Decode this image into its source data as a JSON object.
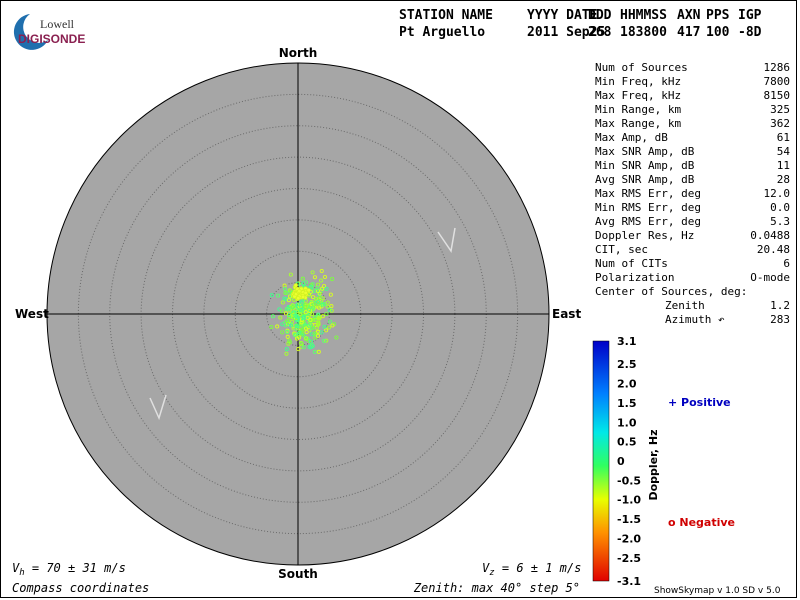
{
  "logo": {
    "name": "Lowell",
    "product": "DIGISONDE"
  },
  "header": {
    "columns": [
      "STATION NAME",
      "YYYY DATE",
      "DDD",
      "HHMMSS",
      "AXN",
      "PPS",
      "IGP"
    ],
    "values": [
      "Pt Arguello",
      "2011 Sep25",
      "268",
      "183800",
      "417",
      "100",
      "-8D"
    ]
  },
  "compass": {
    "north": "North",
    "south": "South",
    "east": "East",
    "west": "West"
  },
  "stats": [
    [
      "Num of Sources",
      "1286"
    ],
    [
      "Min Freq, kHz",
      "7800"
    ],
    [
      "Max Freq, kHz",
      "8150"
    ],
    [
      "Min Range, km",
      "325"
    ],
    [
      "Max Range, km",
      "362"
    ],
    [
      "Max Amp, dB",
      "61"
    ],
    [
      "Max SNR Amp, dB",
      "54"
    ],
    [
      "Min SNR Amp, dB",
      "11"
    ],
    [
      "Avg SNR Amp, dB",
      "28"
    ],
    [
      "Max RMS Err, deg",
      "12.0"
    ],
    [
      "Min RMS Err, deg",
      "0.0"
    ],
    [
      "Avg RMS Err, deg",
      "5.3"
    ],
    [
      "Doppler Res, Hz",
      "0.0488"
    ],
    [
      "CIT, sec",
      "20.48"
    ],
    [
      "Num of CITs",
      "6"
    ],
    [
      "Polarization",
      "O-mode"
    ]
  ],
  "center": {
    "title": "Center of Sources, deg:",
    "rows": [
      [
        "Zenith",
        "1.2"
      ],
      [
        "Azimuth ↶",
        "283"
      ]
    ]
  },
  "colorbar": {
    "ticks": [
      "3.1",
      "2.5",
      "2.0",
      "1.5",
      "1.0",
      "0.5",
      "0",
      "-0.5",
      "-1.0",
      "-1.5",
      "-2.0",
      "-2.5",
      "-3.1"
    ],
    "label": "Doppler, Hz",
    "positive": "+ Positive",
    "negative": "o Negative"
  },
  "footer": {
    "vh": {
      "symbol": "V",
      "sub": "h",
      "rest": " = 70 ± 31 m/s"
    },
    "vz": {
      "symbol": "V",
      "sub": "z",
      "rest": " = 6 ± 1 m/s"
    },
    "coords": "Compass coordinates",
    "zenith": "Zenith: max 40°  step 5°",
    "version": "ShowSkymap v 1.0   SD v 5.0"
  }
}
